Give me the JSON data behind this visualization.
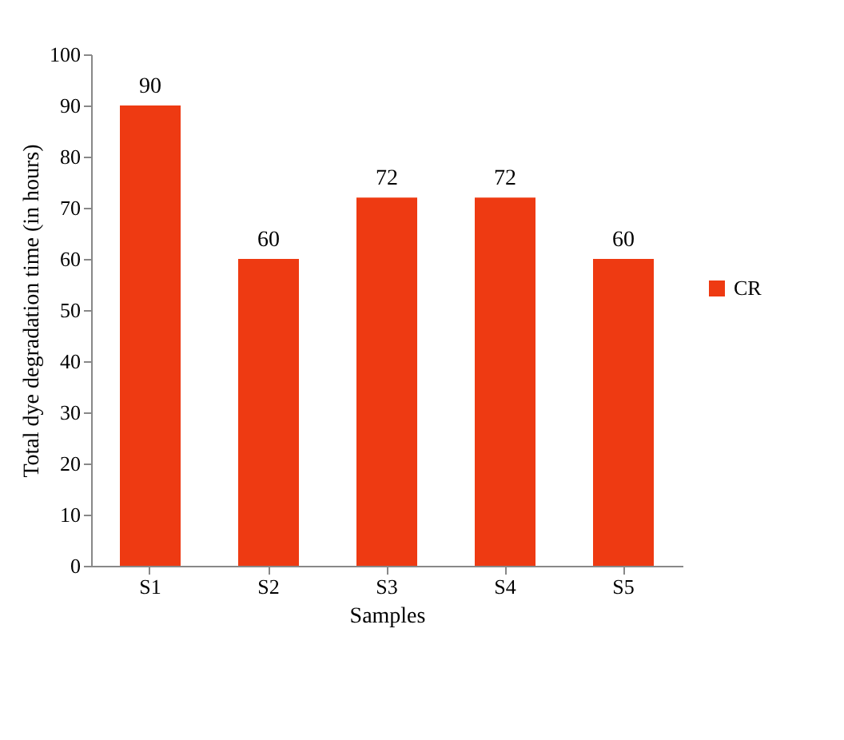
{
  "chart_data": {
    "type": "bar",
    "xlabel": "Samples",
    "ylabel": "Total dye degradation time (in hours)",
    "categories": [
      "S1",
      "S2",
      "S3",
      "S4",
      "S5"
    ],
    "series": [
      {
        "name": "CR",
        "color": "#ee3a12",
        "values": [
          90,
          60,
          72,
          72,
          60
        ]
      }
    ],
    "ylim": [
      0,
      100
    ],
    "yticks": [
      0,
      10,
      20,
      30,
      40,
      50,
      60,
      70,
      80,
      90,
      100
    ],
    "grid": false,
    "legend": "right",
    "data_labels": true
  }
}
